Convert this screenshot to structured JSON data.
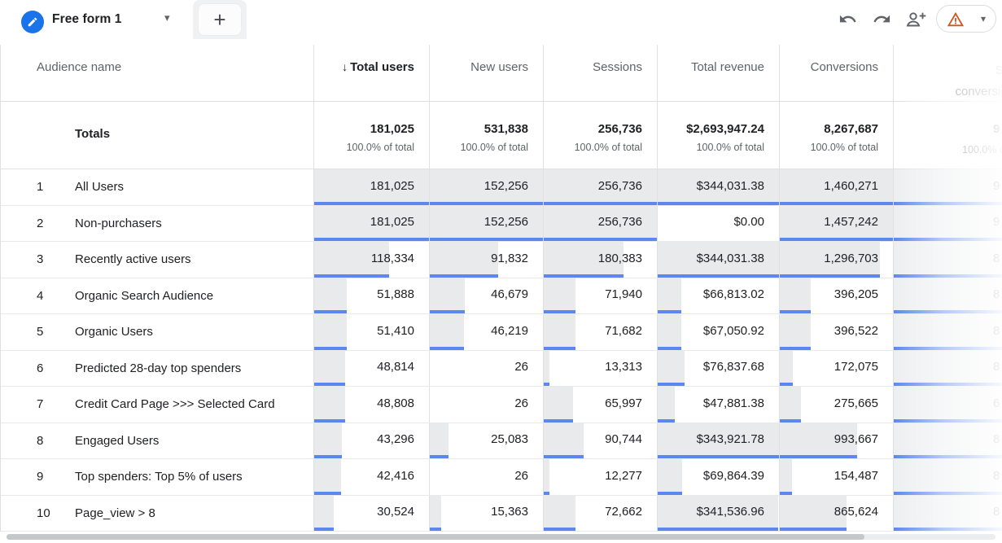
{
  "colors": {
    "accent_blue": "#1a73e8",
    "bar_blue": "#5b87ee",
    "heat_fill": "#e9eaec",
    "warning_orange": "#d0551f",
    "header_text": "#5f6368"
  },
  "tabbar": {
    "active_tab_label": "Free form 1",
    "add_tab_label": "+"
  },
  "toolbar": {
    "undo_icon": "undo-arrow",
    "redo_icon": "redo-arrow",
    "share_icon": "person-add",
    "warning_icon": "warning-triangle"
  },
  "table": {
    "columns": [
      {
        "label": "Audience name",
        "sorted": false
      },
      {
        "label": "Total users",
        "sorted": true,
        "sort_direction": "descending"
      },
      {
        "label": "New users",
        "sorted": false
      },
      {
        "label": "Sessions",
        "sorted": false
      },
      {
        "label": "Total revenue",
        "sorted": false
      },
      {
        "label": "Conversions",
        "sorted": false
      },
      {
        "label_line1": "Session",
        "label_line2": "conversion rate",
        "partially_visible": true
      }
    ],
    "totals": {
      "label": "Totals",
      "cells": [
        {
          "value": "181,025",
          "sub": "100.0% of total"
        },
        {
          "value": "531,838",
          "sub": "100.0% of total"
        },
        {
          "value": "256,736",
          "sub": "100.0% of total"
        },
        {
          "value": "$2,693,947.24",
          "sub": "100.0% of total"
        },
        {
          "value": "8,267,687",
          "sub": "100.0% of total"
        }
      ],
      "partial_cell": {
        "visible_value_start": "9",
        "sub": "100.0% of total"
      }
    },
    "rows": [
      {
        "num": "1",
        "name": "All Users",
        "cells": [
          {
            "value": "181,025",
            "bar": 1
          },
          {
            "value": "152,256",
            "bar": 1
          },
          {
            "value": "256,736",
            "bar": 1
          },
          {
            "value": "$344,031.38",
            "bar": 1
          },
          {
            "value": "1,460,271",
            "bar": 1
          }
        ],
        "partial_digit": "9",
        "partial_bar": 1
      },
      {
        "num": "2",
        "name": "Non-purchasers",
        "cells": [
          {
            "value": "181,025",
            "bar": 1
          },
          {
            "value": "152,256",
            "bar": 1
          },
          {
            "value": "256,736",
            "bar": 1
          },
          {
            "value": "$0.00",
            "bar": 0
          },
          {
            "value": "1,457,242",
            "bar": 0.9979
          }
        ],
        "partial_digit": "9",
        "partial_bar": 1
      },
      {
        "num": "3",
        "name": "Recently active users",
        "cells": [
          {
            "value": "118,334",
            "bar": 0.6537
          },
          {
            "value": "91,832",
            "bar": 0.6031
          },
          {
            "value": "180,383",
            "bar": 0.7026
          },
          {
            "value": "$344,031.38",
            "bar": 1
          },
          {
            "value": "1,296,703",
            "bar": 0.888
          }
        ],
        "partial_digit": "8",
        "partial_bar": 1
      },
      {
        "num": "4",
        "name": "Organic Search Audience",
        "cells": [
          {
            "value": "51,888",
            "bar": 0.2866
          },
          {
            "value": "46,679",
            "bar": 0.3066
          },
          {
            "value": "71,940",
            "bar": 0.2802
          },
          {
            "value": "$66,813.02",
            "bar": 0.1942
          },
          {
            "value": "396,205",
            "bar": 0.2713
          }
        ],
        "partial_digit": "8",
        "partial_bar": 1
      },
      {
        "num": "5",
        "name": "Organic Users",
        "cells": [
          {
            "value": "51,410",
            "bar": 0.284
          },
          {
            "value": "46,219",
            "bar": 0.3036
          },
          {
            "value": "71,682",
            "bar": 0.2792
          },
          {
            "value": "$67,050.92",
            "bar": 0.1949
          },
          {
            "value": "396,522",
            "bar": 0.2715
          }
        ],
        "partial_digit": "8",
        "partial_bar": 1
      },
      {
        "num": "6",
        "name": "Predicted 28-day top spenders",
        "cells": [
          {
            "value": "48,814",
            "bar": 0.2696
          },
          {
            "value": "26",
            "bar": 0.0002
          },
          {
            "value": "13,313",
            "bar": 0.0519
          },
          {
            "value": "$76,837.68",
            "bar": 0.2233
          },
          {
            "value": "172,075",
            "bar": 0.1178
          }
        ],
        "partial_digit": "8",
        "partial_bar": 1
      },
      {
        "num": "7",
        "name": "Credit Card Page >>> Selected Card",
        "cells": [
          {
            "value": "48,808",
            "bar": 0.2696
          },
          {
            "value": "26",
            "bar": 0.0002
          },
          {
            "value": "65,997",
            "bar": 0.2571
          },
          {
            "value": "$47,881.38",
            "bar": 0.1392
          },
          {
            "value": "275,665",
            "bar": 0.1888
          }
        ],
        "partial_digit": "6",
        "partial_bar": 1
      },
      {
        "num": "8",
        "name": "Engaged Users",
        "cells": [
          {
            "value": "43,296",
            "bar": 0.2392
          },
          {
            "value": "25,083",
            "bar": 0.1648
          },
          {
            "value": "90,744",
            "bar": 0.3535
          },
          {
            "value": "$343,921.78",
            "bar": 0.9997
          },
          {
            "value": "993,667",
            "bar": 0.6805
          }
        ],
        "partial_digit": "8",
        "partial_bar": 1
      },
      {
        "num": "9",
        "name": "Top spenders: Top 5% of users",
        "cells": [
          {
            "value": "42,416",
            "bar": 0.2343
          },
          {
            "value": "26",
            "bar": 0.0002
          },
          {
            "value": "12,277",
            "bar": 0.0478
          },
          {
            "value": "$69,864.39",
            "bar": 0.2031
          },
          {
            "value": "154,487",
            "bar": 0.1058
          }
        ],
        "partial_digit": "8",
        "partial_bar": 1
      },
      {
        "num": "10",
        "name": "Page_view > 8",
        "cells": [
          {
            "value": "30,524",
            "bar": 0.1686
          },
          {
            "value": "15,363",
            "bar": 0.1009
          },
          {
            "value": "72,662",
            "bar": 0.283
          },
          {
            "value": "$341,536.96",
            "bar": 0.9927
          },
          {
            "value": "865,624",
            "bar": 0.5928
          }
        ],
        "partial_digit": "8",
        "partial_bar": 1
      }
    ]
  }
}
